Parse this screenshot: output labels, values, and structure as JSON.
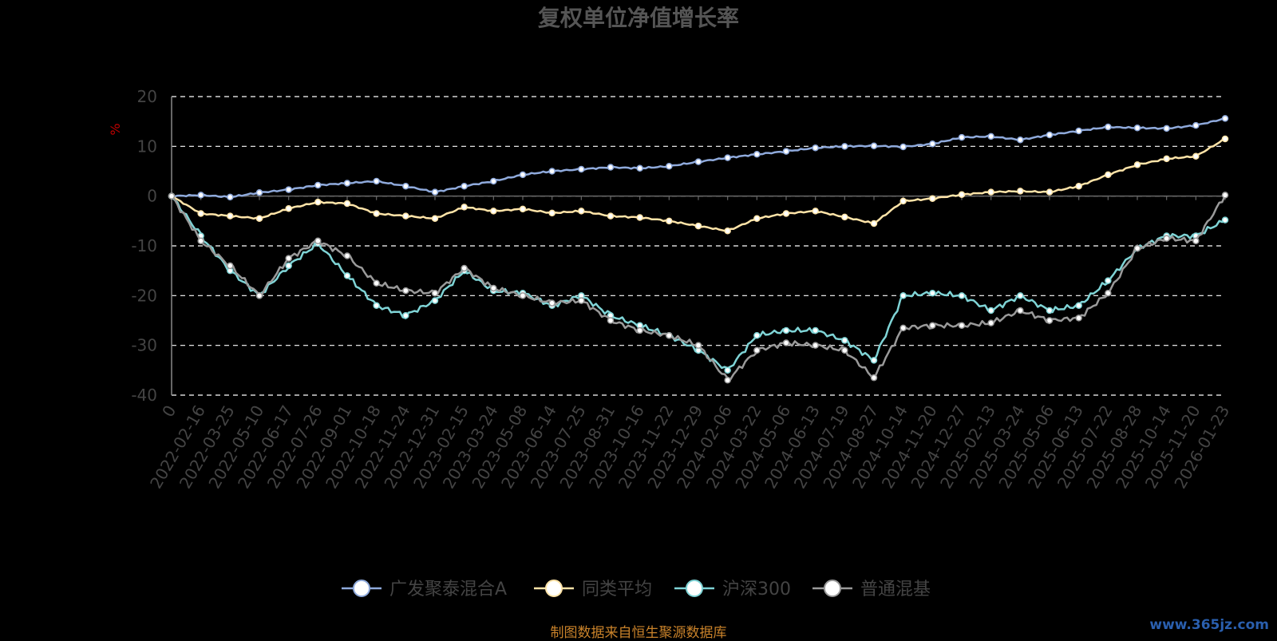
{
  "chart_data": {
    "type": "line",
    "title": "复权单位净值增长率",
    "ylabel": "%",
    "ylim": [
      -40,
      20
    ],
    "yticks": [
      20,
      10,
      0,
      -10,
      -20,
      -30,
      -40
    ],
    "grid": true,
    "legend_position": "bottom",
    "x_tick_labels": [
      "0",
      "2022-02-16",
      "2022-03-25",
      "2022-05-10",
      "2022-06-17",
      "2022-07-26",
      "2022-09-01",
      "2022-10-18",
      "2022-11-24",
      "2022-12-31",
      "2023-02-15",
      "2023-03-24",
      "2023-05-08",
      "2023-06-14",
      "2023-07-25",
      "2023-08-31",
      "2023-10-16",
      "2023-11-22",
      "2023-12-29",
      "2024-02-06",
      "2024-03-22",
      "2024-05-06",
      "2024-06-13",
      "2024-07-19",
      "2024-08-27",
      "2024-10-14",
      "2024-11-20",
      "2024-12-27",
      "2025-02-13",
      "2025-03-24",
      "2025-05-06",
      "2025-06-13",
      "2025-07-22",
      "2025-08-28",
      "2025-10-14",
      "2025-11-20",
      "2026-01-23"
    ],
    "series": [
      {
        "name": "广发聚泰混合A",
        "color": "#8faadc",
        "values": [
          0,
          0.2,
          -0.2,
          0.7,
          1.3,
          2.2,
          2.6,
          3.0,
          2.0,
          0.8,
          2.0,
          3.0,
          4.3,
          5.0,
          5.4,
          5.8,
          5.6,
          6.0,
          6.9,
          7.7,
          8.4,
          9.0,
          9.7,
          10.0,
          10.1,
          9.9,
          10.5,
          11.8,
          12.0,
          11.3,
          12.3,
          13.1,
          13.9,
          13.7,
          13.6,
          14.2,
          15.6
        ]
      },
      {
        "name": "同类平均",
        "color": "#ffe4a8",
        "values": [
          0,
          -3.5,
          -4.0,
          -4.5,
          -2.5,
          -1.2,
          -1.5,
          -3.5,
          -4.0,
          -4.5,
          -2.2,
          -3.0,
          -2.6,
          -3.4,
          -3.0,
          -4.0,
          -4.3,
          -5.0,
          -6.0,
          -7.0,
          -4.5,
          -3.5,
          -3.0,
          -4.2,
          -5.5,
          -1.0,
          -0.5,
          0.3,
          0.8,
          1.0,
          0.8,
          2.0,
          4.3,
          6.3,
          7.5,
          8.0,
          11.5
        ]
      },
      {
        "name": "沪深300",
        "color": "#7fd4d6",
        "values": [
          0,
          -8.0,
          -15.0,
          -20.0,
          -14.0,
          -9.5,
          -16.0,
          -22.0,
          -24.0,
          -21.0,
          -15.0,
          -19.0,
          -19.5,
          -22.0,
          -20.0,
          -24.0,
          -26.0,
          -28.0,
          -31.0,
          -35.0,
          -28.0,
          -27.0,
          -27.0,
          -29.0,
          -33.0,
          -20.0,
          -19.5,
          -20.0,
          -23.0,
          -20.0,
          -23.0,
          -22.0,
          -17.0,
          -10.5,
          -8.0,
          -8.0,
          -4.8
        ]
      },
      {
        "name": "普通混基",
        "color": "#9a9a9a",
        "values": [
          0,
          -9.0,
          -14.0,
          -20.0,
          -12.5,
          -9.0,
          -12.0,
          -17.5,
          -19.0,
          -19.5,
          -14.5,
          -18.5,
          -20.0,
          -21.5,
          -21.0,
          -25.0,
          -27.0,
          -28.0,
          -30.0,
          -37.0,
          -31.0,
          -29.5,
          -30.0,
          -31.0,
          -36.5,
          -26.5,
          -26.0,
          -26.0,
          -25.5,
          -23.0,
          -25.0,
          -24.5,
          -19.5,
          -10.5,
          -8.5,
          -9.0,
          0.2
        ]
      }
    ]
  },
  "footer": {
    "source": "制图数据来自恒生聚源数据库",
    "watermark": "www.365jz.com"
  }
}
